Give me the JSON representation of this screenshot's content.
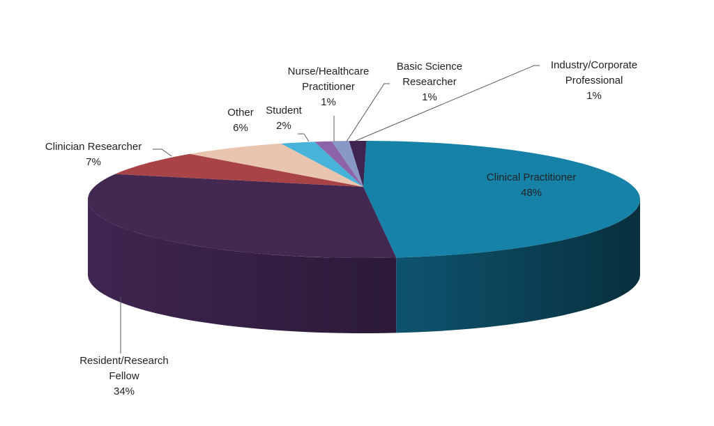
{
  "chart_data": {
    "type": "pie",
    "style": "3d",
    "title": "",
    "categories": [
      "Clinical Practitioner",
      "Resident/Research Fellow",
      "Clinician Researcher",
      "Other",
      "Student",
      "Nurse/Healthcare Practitioner",
      "Basic Science Researcher",
      "Industry/Corporate Professional"
    ],
    "values": [
      48,
      34,
      7,
      6,
      2,
      1,
      1,
      1
    ],
    "value_labels": [
      "48%",
      "34%",
      "7%",
      "6%",
      "2%",
      "1%",
      "1%",
      "1%"
    ],
    "colors": [
      "#1682A8",
      "#432852",
      "#A84448",
      "#E9C4AE",
      "#47B3D8",
      "#8E64A9",
      "#8797C6",
      "#3E2450"
    ],
    "side_colors": [
      "#0A3D4D",
      "#2E1C3C",
      "#6E2A2D",
      "#A8887A",
      "#2E7E9A",
      "#5E4273",
      "#5A6689",
      "#281632"
    ],
    "legend": "none",
    "data_labels": "category name and percentage"
  },
  "labels": [
    {
      "name_lines": [
        "Clinical Practitioner"
      ],
      "pct": "48%"
    },
    {
      "name_lines": [
        "Resident/Research",
        "Fellow"
      ],
      "pct": "34%"
    },
    {
      "name_lines": [
        "Clinician Researcher"
      ],
      "pct": "7%"
    },
    {
      "name_lines": [
        "Other"
      ],
      "pct": "6%"
    },
    {
      "name_lines": [
        "Student"
      ],
      "pct": "2%"
    },
    {
      "name_lines": [
        "Nurse/Healthcare",
        "Practitioner"
      ],
      "pct": "1%"
    },
    {
      "name_lines": [
        "Basic Science",
        "Researcher"
      ],
      "pct": "1%"
    },
    {
      "name_lines": [
        "Industry/Corporate",
        "Professional"
      ],
      "pct": "1%"
    }
  ]
}
